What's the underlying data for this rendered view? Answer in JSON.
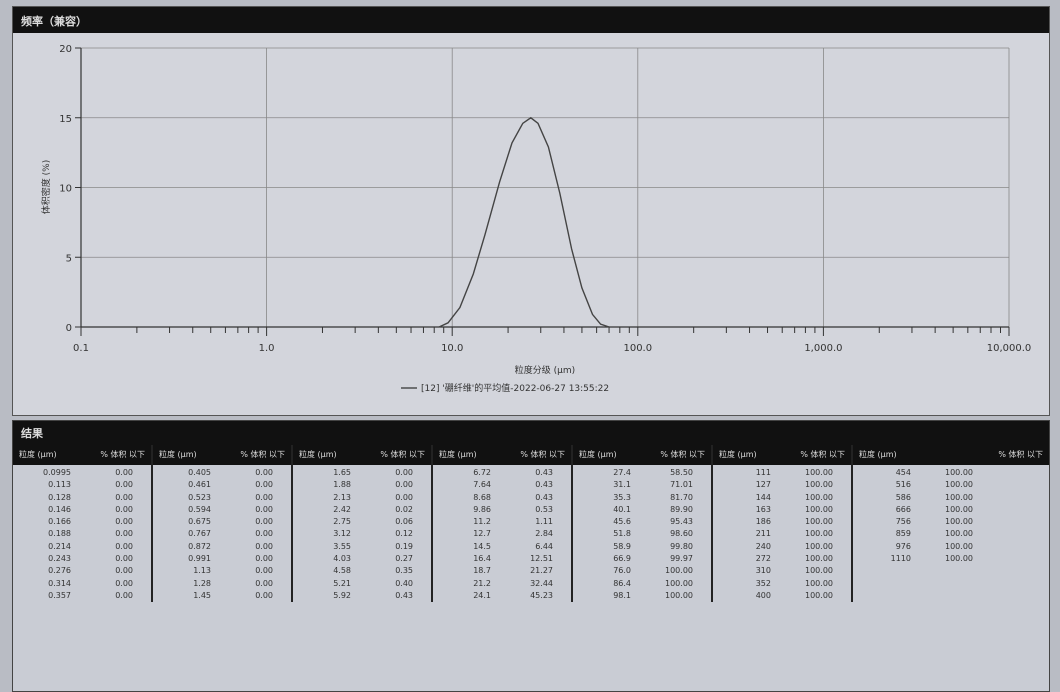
{
  "chart_section": {
    "title": "频率（兼容）"
  },
  "chart_data": {
    "type": "line",
    "title": "频率（兼容）",
    "xlabel": "粒度分级 (μm)",
    "ylabel": "体积密度 (%)",
    "xscale": "log",
    "xlim": [
      0.1,
      10000
    ],
    "ylim": [
      0,
      20
    ],
    "xticks": [
      "0.1",
      "1.0",
      "10.0",
      "100.0",
      "1,000.0",
      "10,000.0"
    ],
    "yticks": [
      "0",
      "5",
      "10",
      "15",
      "20"
    ],
    "grid": true,
    "legend_placement": "bottom",
    "series": [
      {
        "name": "[12] '硼纤维'的平均值-2022-06-27 13:55:22",
        "x": [
          8.5,
          9.5,
          11,
          13,
          15,
          18,
          21,
          24,
          26.5,
          29,
          33,
          38,
          44,
          50,
          57,
          63,
          70
        ],
        "y": [
          0,
          0.3,
          1.4,
          3.8,
          6.6,
          10.4,
          13.2,
          14.6,
          15.0,
          14.6,
          12.9,
          9.6,
          5.6,
          2.8,
          0.9,
          0.2,
          0
        ]
      }
    ],
    "color": "#444444"
  },
  "table": {
    "title": "结果",
    "size_header": "粒度 (μm)",
    "pct_header": "% 体积 以下",
    "groups": [
      {
        "sizes": [
          "0.0995",
          "0.113",
          "0.128",
          "0.146",
          "0.166",
          "0.188",
          "0.214",
          "0.243",
          "0.276",
          "0.314",
          "0.357"
        ],
        "pcts": [
          "0.00",
          "0.00",
          "0.00",
          "0.00",
          "0.00",
          "0.00",
          "0.00",
          "0.00",
          "0.00",
          "0.00",
          "0.00"
        ]
      },
      {
        "sizes": [
          "0.405",
          "0.461",
          "0.523",
          "0.594",
          "0.675",
          "0.767",
          "0.872",
          "0.991",
          "1.13",
          "1.28",
          "1.45"
        ],
        "pcts": [
          "0.00",
          "0.00",
          "0.00",
          "0.00",
          "0.00",
          "0.00",
          "0.00",
          "0.00",
          "0.00",
          "0.00",
          "0.00"
        ]
      },
      {
        "sizes": [
          "1.65",
          "1.88",
          "2.13",
          "2.42",
          "2.75",
          "3.12",
          "3.55",
          "4.03",
          "4.58",
          "5.21",
          "5.92"
        ],
        "pcts": [
          "0.00",
          "0.00",
          "0.00",
          "0.02",
          "0.06",
          "0.12",
          "0.19",
          "0.27",
          "0.35",
          "0.40",
          "0.43"
        ]
      },
      {
        "sizes": [
          "6.72",
          "7.64",
          "8.68",
          "9.86",
          "11.2",
          "12.7",
          "14.5",
          "16.4",
          "18.7",
          "21.2",
          "24.1"
        ],
        "pcts": [
          "0.43",
          "0.43",
          "0.43",
          "0.53",
          "1.11",
          "2.84",
          "6.44",
          "12.51",
          "21.27",
          "32.44",
          "45.23"
        ]
      },
      {
        "sizes": [
          "27.4",
          "31.1",
          "35.3",
          "40.1",
          "45.6",
          "51.8",
          "58.9",
          "66.9",
          "76.0",
          "86.4",
          "98.1"
        ],
        "pcts": [
          "58.50",
          "71.01",
          "81.70",
          "89.90",
          "95.43",
          "98.60",
          "99.80",
          "99.97",
          "100.00",
          "100.00",
          "100.00"
        ]
      },
      {
        "sizes": [
          "111",
          "127",
          "144",
          "163",
          "186",
          "211",
          "240",
          "272",
          "310",
          "352",
          "400"
        ],
        "pcts": [
          "100.00",
          "100.00",
          "100.00",
          "100.00",
          "100.00",
          "100.00",
          "100.00",
          "100.00",
          "100.00",
          "100.00",
          "100.00"
        ]
      },
      {
        "sizes": [
          "454",
          "516",
          "586",
          "666",
          "756",
          "859",
          "976",
          "1110"
        ],
        "pcts": [
          "100.00",
          "100.00",
          "100.00",
          "100.00",
          "100.00",
          "100.00",
          "100.00",
          "100.00"
        ]
      }
    ]
  }
}
